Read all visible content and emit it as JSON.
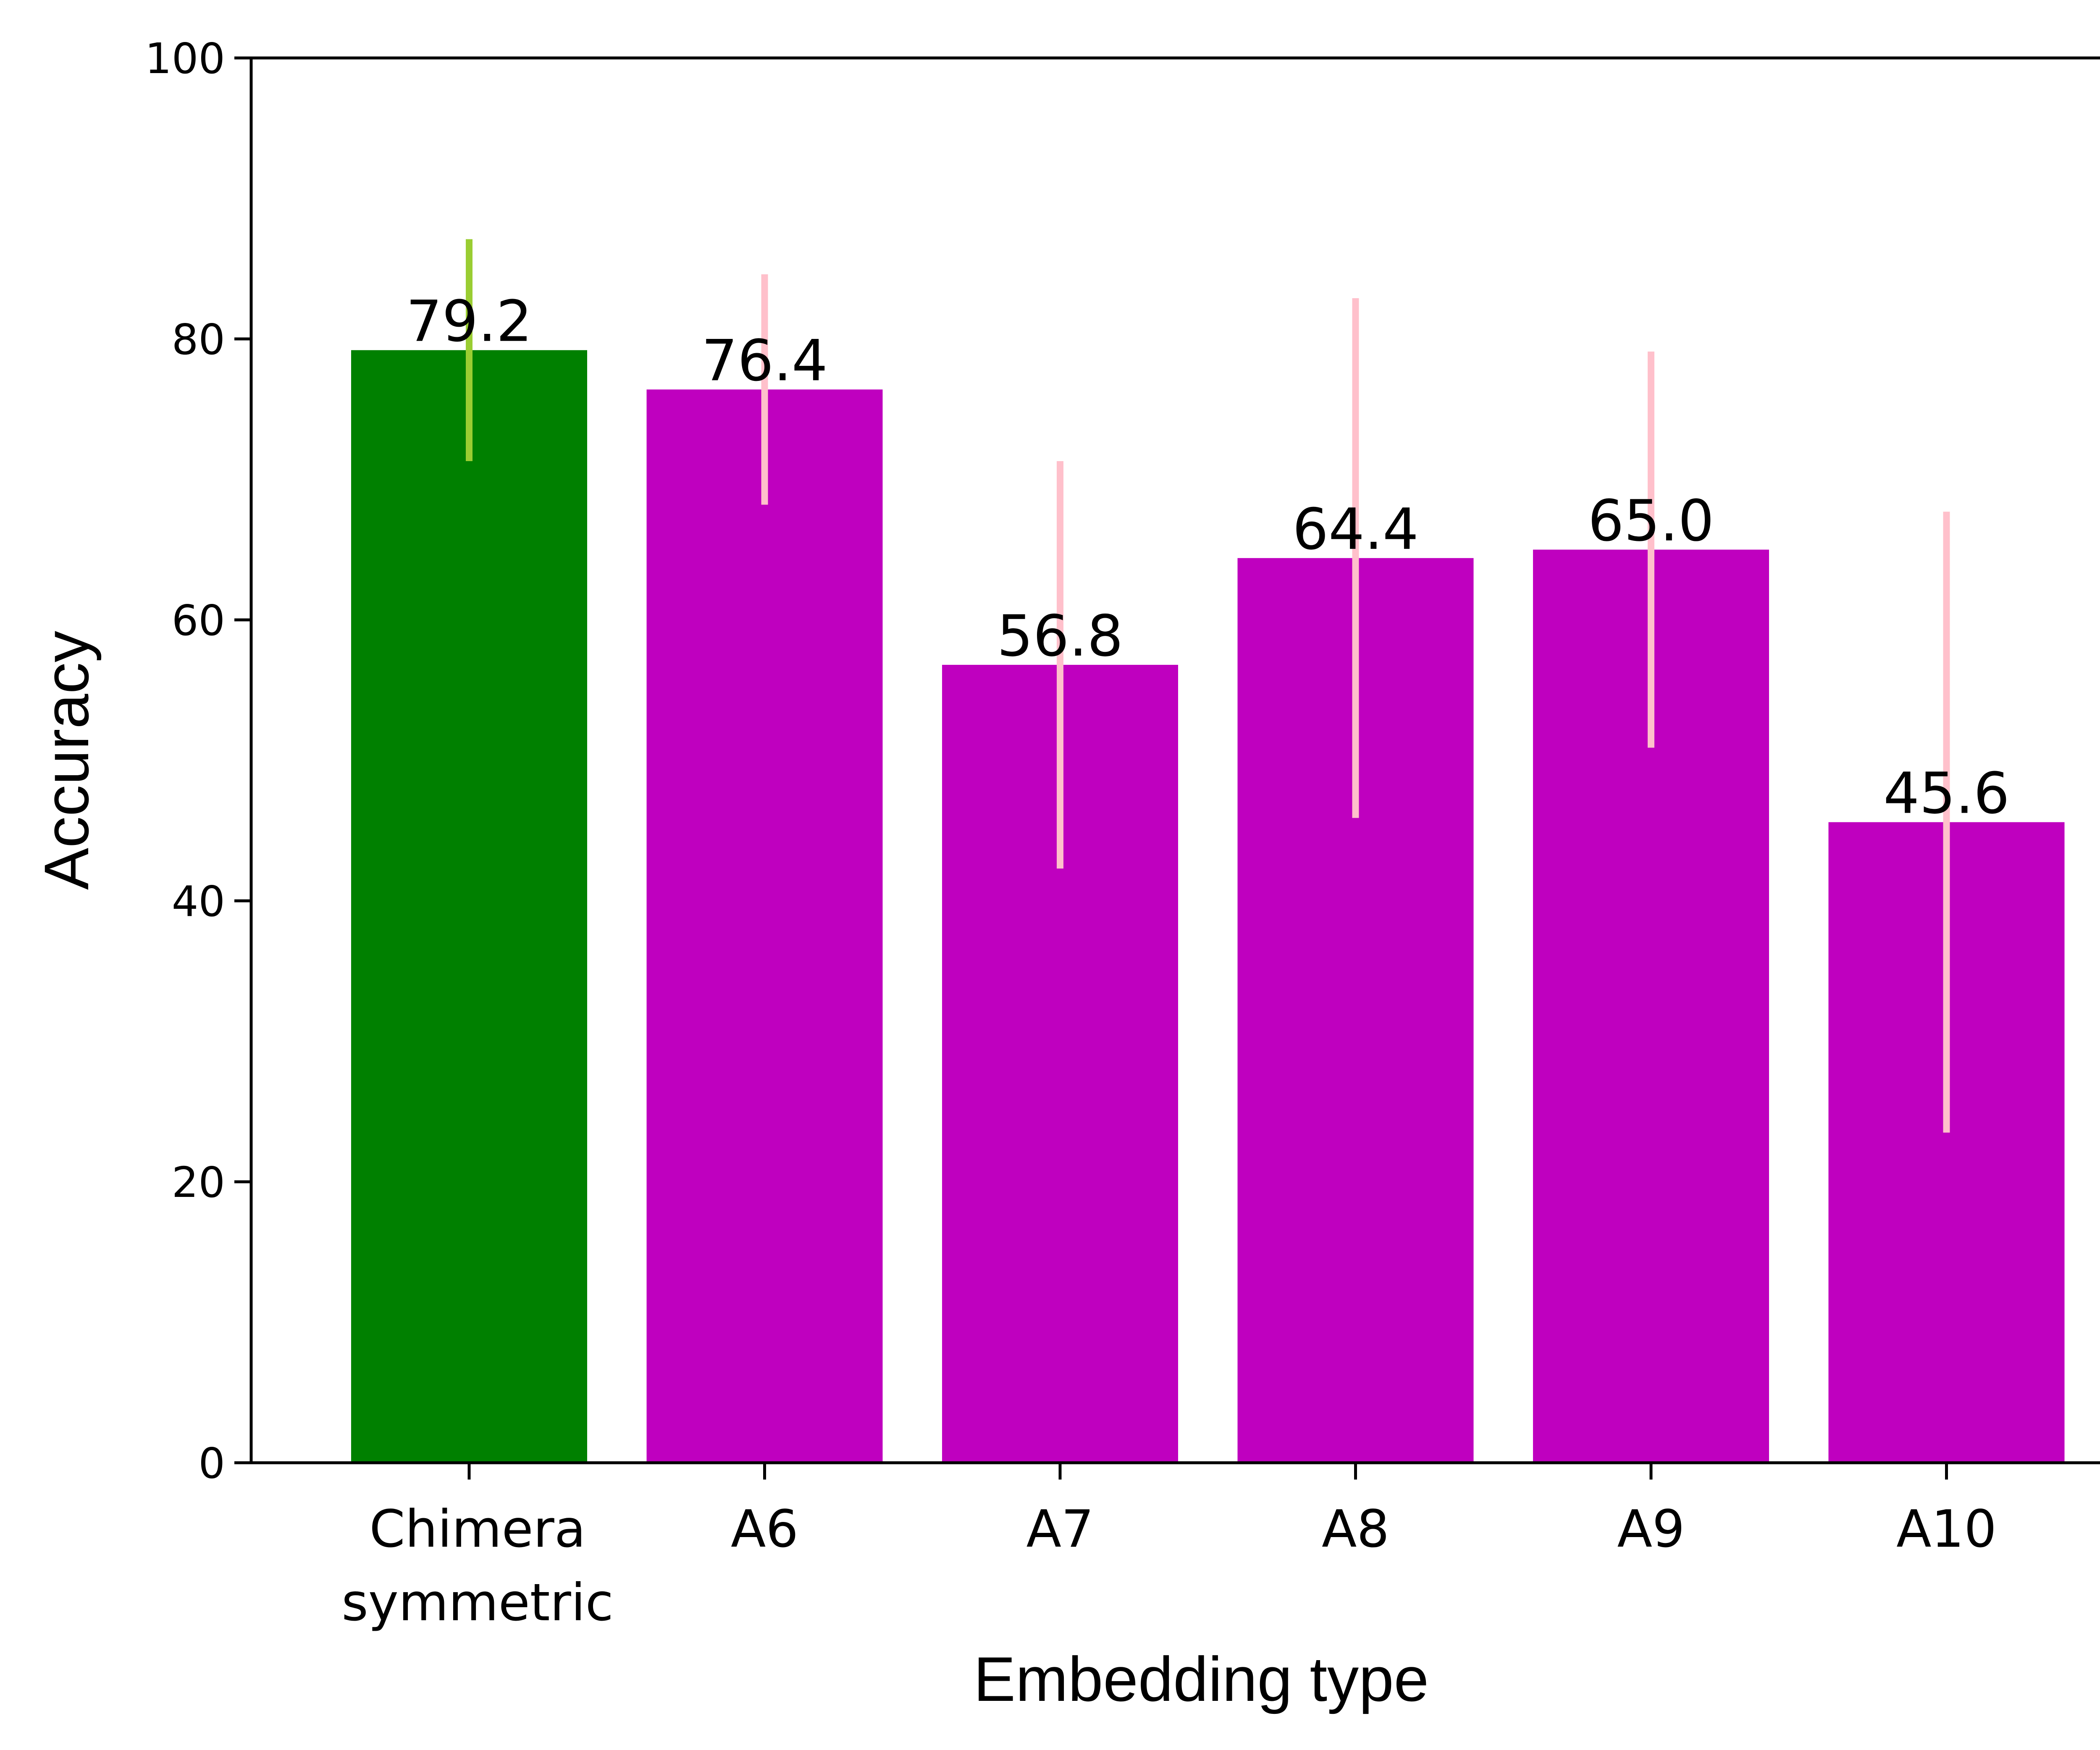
{
  "chart_data": {
    "type": "bar",
    "title": "",
    "xlabel": "Embedding type",
    "ylabel": "Accuracy",
    "ylim": [
      0,
      100
    ],
    "yticks": [
      0,
      20,
      40,
      60,
      80,
      100
    ],
    "categories": [
      [
        "Chimera",
        "symmetric"
      ],
      [
        "A6"
      ],
      [
        "A7"
      ],
      [
        "A8"
      ],
      [
        "A9"
      ],
      [
        "A10"
      ]
    ],
    "values": [
      79.2,
      76.4,
      56.8,
      64.4,
      65.0,
      45.6
    ],
    "value_labels": [
      "79.2",
      "76.4",
      "56.8",
      "64.4",
      "65.0",
      "45.6"
    ],
    "error_low": [
      71.3,
      68.2,
      42.3,
      45.9,
      50.9,
      23.5
    ],
    "error_high": [
      87.1,
      84.6,
      71.3,
      82.9,
      79.1,
      67.7
    ],
    "bar_colors": [
      "#008000",
      "#bf00bf",
      "#bf00bf",
      "#bf00bf",
      "#bf00bf",
      "#bf00bf"
    ],
    "error_colors": [
      "#9acd32",
      "#ffc0cb",
      "#ffc0cb",
      "#ffc0cb",
      "#ffc0cb",
      "#ffc0cb"
    ],
    "grid": false
  }
}
